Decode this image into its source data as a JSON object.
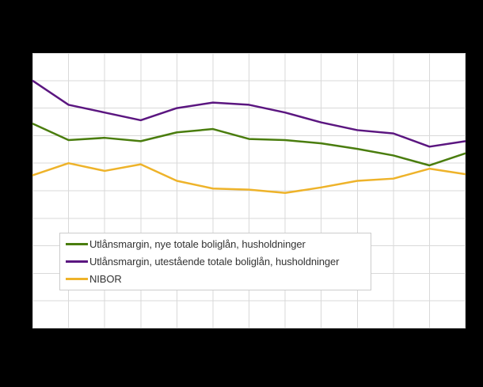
{
  "figure": {
    "background_color": "#000000",
    "plot_background_color": "#ffffff",
    "grid_color": "#d9d9d9",
    "legend_border_color": "#cccccc",
    "legend_text_color": "#333333"
  },
  "chart_data": {
    "type": "line",
    "title": "",
    "xlabel": "",
    "ylabel": "",
    "num_points": 13,
    "ylim": [
      0,
      2.5
    ],
    "y_grid_step": 0.25,
    "grid": true,
    "axis_tick_labels_visible": false,
    "legend_position": "inside-bottom-left",
    "series": [
      {
        "name": "Utlånsmargin, nye totale boliglån, husholdninger",
        "color": "#4a7d0e",
        "values": [
          1.86,
          1.71,
          1.73,
          1.7,
          1.78,
          1.81,
          1.72,
          1.71,
          1.68,
          1.63,
          1.57,
          1.48,
          1.59
        ]
      },
      {
        "name": "Utlånsmargin, utestående totale boliglån, husholdninger",
        "color": "#5b1680",
        "values": [
          2.25,
          2.03,
          1.96,
          1.89,
          2.0,
          2.05,
          2.03,
          1.96,
          1.87,
          1.8,
          1.77,
          1.65,
          1.7
        ]
      },
      {
        "name": "NIBOR",
        "color": "#eeb32a",
        "values": [
          1.39,
          1.5,
          1.43,
          1.49,
          1.34,
          1.27,
          1.26,
          1.23,
          1.28,
          1.34,
          1.36,
          1.45,
          1.4
        ]
      }
    ]
  }
}
